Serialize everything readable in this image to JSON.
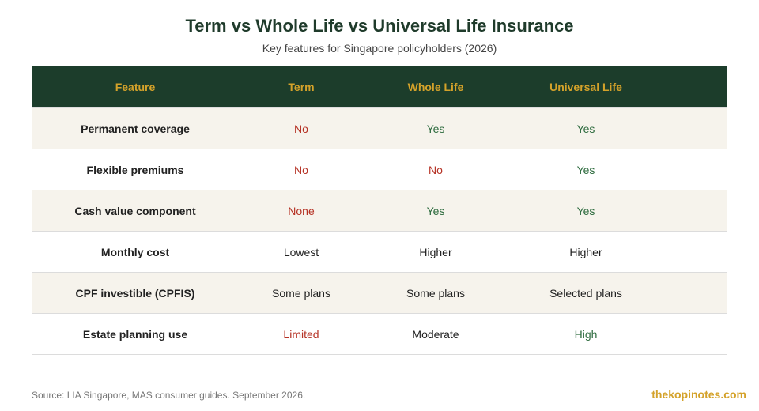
{
  "title": "Term vs Whole Life vs Universal Life Insurance",
  "subtitle": "Key features for Singapore policyholders (2026)",
  "colors": {
    "header_bg": "#1c3d2b",
    "header_text": "#d4a22a",
    "negative": "#b53124",
    "positive": "#2d6b3e",
    "neutral": "#222222",
    "row_shade": "#f6f3ec"
  },
  "chart_data": {
    "type": "table",
    "columns": [
      "Feature",
      "Term",
      "Whole Life",
      "Universal Life"
    ],
    "rows": [
      {
        "cells": [
          "Permanent coverage",
          "No",
          "Yes",
          "Yes"
        ],
        "tones": [
          "label",
          "neg",
          "pos",
          "pos"
        ]
      },
      {
        "cells": [
          "Flexible premiums",
          "No",
          "No",
          "Yes"
        ],
        "tones": [
          "label",
          "neg",
          "neg",
          "pos"
        ]
      },
      {
        "cells": [
          "Cash value component",
          "None",
          "Yes",
          "Yes"
        ],
        "tones": [
          "label",
          "neg",
          "pos",
          "pos"
        ]
      },
      {
        "cells": [
          "Monthly cost",
          "Lowest",
          "Higher",
          "Higher"
        ],
        "tones": [
          "label",
          "neutral",
          "neutral",
          "neutral"
        ]
      },
      {
        "cells": [
          "CPF investible (CPFIS)",
          "Some plans",
          "Some plans",
          "Selected plans"
        ],
        "tones": [
          "label",
          "neutral",
          "neutral",
          "neutral"
        ]
      },
      {
        "cells": [
          "Estate planning use",
          "Limited",
          "Moderate",
          "High"
        ],
        "tones": [
          "label",
          "neg",
          "neutral",
          "pos"
        ]
      }
    ]
  },
  "footer": {
    "source": "Source: LIA Singapore, MAS consumer guides. September 2026.",
    "brand": "thekopinotes.com"
  }
}
